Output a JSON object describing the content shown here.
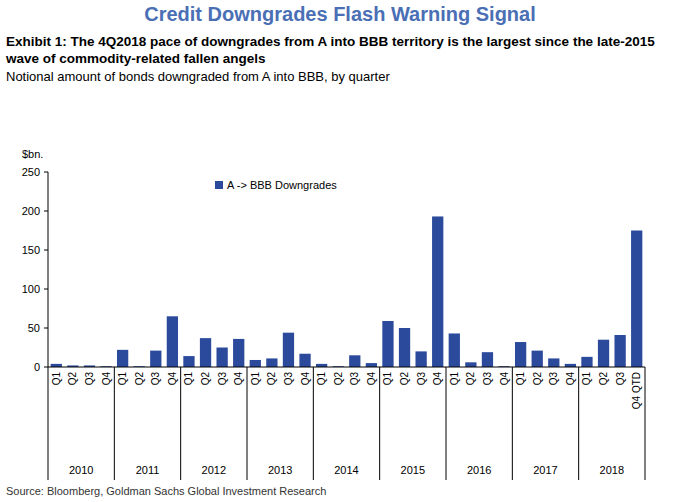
{
  "chart_data": {
    "type": "bar",
    "title": "Credit Downgrades Flash Warning Signal",
    "subtitle": "Exhibit 1: The 4Q2018 pace of downgrades from A into BBB territory is the largest since the late-2015 wave of commodity-related fallen angels",
    "description": "Notional amount of bonds downgraded from A into BBB, by quarter",
    "y_label": "$bn.",
    "source": "Source: Bloomberg, Goldman Sachs Global Investment Research",
    "categories": [
      "Q1",
      "Q2",
      "Q3",
      "Q4",
      "Q1",
      "Q2",
      "Q3",
      "Q4",
      "Q1",
      "Q2",
      "Q3",
      "Q4",
      "Q1",
      "Q2",
      "Q3",
      "Q4",
      "Q1",
      "Q2",
      "Q3",
      "Q4",
      "Q1",
      "Q2",
      "Q3",
      "Q4",
      "Q1",
      "Q2",
      "Q3",
      "Q4",
      "Q1",
      "Q2",
      "Q3",
      "Q4",
      "Q1",
      "Q2",
      "Q3",
      "Q4 QTD"
    ],
    "category_groups": [
      "2010",
      "2011",
      "2012",
      "2013",
      "2014",
      "2015",
      "2016",
      "2017",
      "2018"
    ],
    "series": [
      {
        "name": "A -> BBB Downgrades",
        "color": "#2b4a9c",
        "values": [
          4,
          2,
          2,
          1,
          22,
          1,
          21,
          65,
          14,
          37,
          25,
          36,
          9,
          11,
          44,
          17,
          4,
          1,
          15,
          5,
          59,
          50,
          20,
          193,
          43,
          6,
          19,
          1,
          32,
          21,
          11,
          4,
          13,
          35,
          41,
          175
        ]
      }
    ],
    "ylim": [
      0,
      250
    ],
    "yticks": [
      0,
      50,
      100,
      150,
      200,
      250
    ],
    "grid": false,
    "legend": "top"
  }
}
